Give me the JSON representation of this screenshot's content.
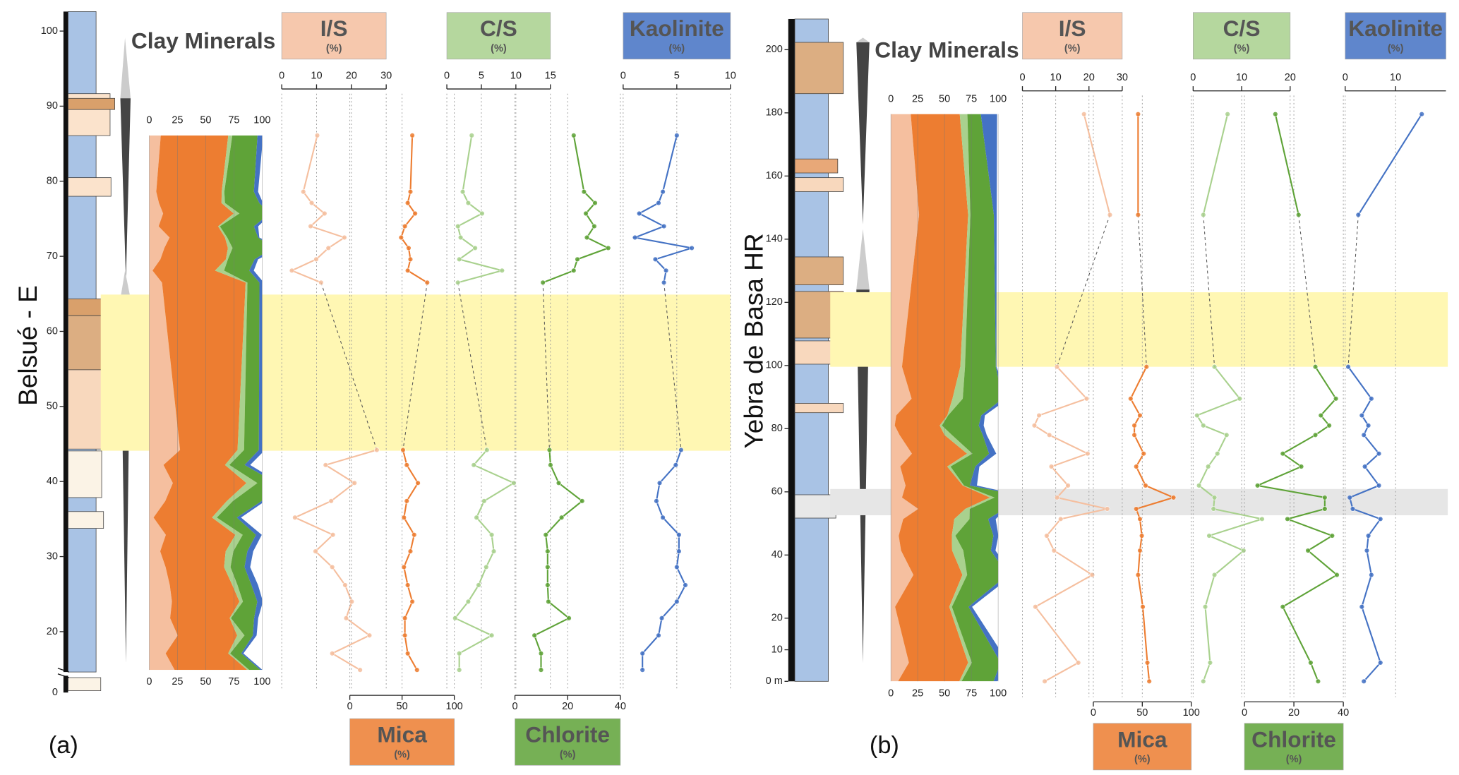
{
  "chart_data": [
    {
      "type": "clay-profile",
      "title": "Clay Minerals",
      "section": "Belsué - E",
      "panel_label": "(a)",
      "ylim": [
        14.5,
        102.6
      ],
      "yticks": [
        20,
        30,
        40,
        50,
        60,
        70,
        80,
        90,
        100
      ],
      "base_label": "0",
      "depths": [
        86.1,
        78.6,
        77.1,
        75.7,
        74.0,
        72.5,
        71.1,
        69.6,
        68.1,
        66.5,
        44.2,
        42.2,
        39.8,
        37.4,
        35.2,
        32.9,
        30.7,
        28.6,
        26.2,
        24.0,
        21.8,
        19.5,
        17.1,
        14.9
      ],
      "stack_lim": [
        0,
        100
      ],
      "stack_ticks": [
        0,
        25,
        50,
        75,
        100
      ],
      "highlights": [
        {
          "from": 44.1,
          "to": 64.9,
          "color": "#fff7b3"
        }
      ],
      "series": [
        {
          "name": "I/S",
          "unit": "(%)",
          "color": "#f5bf9f",
          "axis_position": "top",
          "xlim": [
            0,
            30
          ],
          "xticks": [
            0,
            10,
            20,
            30
          ],
          "values": [
            10.2,
            6.2,
            8.6,
            12.3,
            8.3,
            18.0,
            13.4,
            9.9,
            2.9,
            11.3,
            27.3,
            12.6,
            20.9,
            14.2,
            3.8,
            14.7,
            9.7,
            14.5,
            18.2,
            20.1,
            18.5,
            25.2,
            14.5,
            22.5
          ]
        },
        {
          "name": "Mica",
          "unit": "(%)",
          "color": "#ed7d31",
          "axis_position": "bottom",
          "xlim": [
            0,
            100
          ],
          "xticks": [
            0,
            50,
            100
          ],
          "values": [
            59.8,
            58.0,
            55.4,
            62.5,
            52.7,
            49.1,
            56.3,
            58.0,
            55.4,
            74.1,
            50.9,
            54.5,
            65.2,
            54.5,
            51.8,
            61.6,
            58.0,
            51.8,
            55.4,
            59.8,
            52.7,
            52.7,
            55.4,
            64.3
          ]
        },
        {
          "name": "C/S",
          "unit": "(%)",
          "color": "#a9d18e",
          "axis_position": "top",
          "xlim": [
            0,
            15
          ],
          "xticks": [
            0,
            5,
            10,
            15
          ],
          "values": [
            3.6,
            2.3,
            3.1,
            5.1,
            1.6,
            2.0,
            4.1,
            1.8,
            8.0,
            1.6,
            5.8,
            3.9,
            9.7,
            5.4,
            4.3,
            6.5,
            6.8,
            5.7,
            4.6,
            3.1,
            1.2,
            6.5,
            1.8,
            1.8
          ]
        },
        {
          "name": "Chlorite",
          "unit": "(%)",
          "color": "#5fa338",
          "axis_position": "bottom",
          "xlim": [
            0,
            40
          ],
          "xticks": [
            0,
            20,
            40
          ],
          "values": [
            22.3,
            26.2,
            30.4,
            26.9,
            30.1,
            27.3,
            35.4,
            23.7,
            22.3,
            10.6,
            13.1,
            13.5,
            16.6,
            25.5,
            17.7,
            11.7,
            12.4,
            12.4,
            12.4,
            12.7,
            20.5,
            7.4,
            9.9,
            9.9
          ]
        },
        {
          "name": "Kaolinite",
          "unit": "(%)",
          "color": "#4472c4",
          "axis_position": "top",
          "xlim": [
            0,
            10
          ],
          "xticks": [
            0,
            5,
            10
          ],
          "values": [
            5.0,
            3.7,
            3.3,
            1.5,
            3.8,
            1.1,
            6.4,
            3.0,
            4.0,
            3.8,
            5.4,
            4.9,
            3.4,
            3.1,
            3.7,
            5.2,
            5.2,
            5.0,
            5.8,
            5.0,
            3.6,
            3.3,
            1.8,
            1.8
          ]
        }
      ]
    },
    {
      "type": "clay-profile",
      "title": "Clay Minerals",
      "section": "Yebra de  Basa HR",
      "panel_label": "(b)",
      "ylim": [
        0,
        210
      ],
      "yticks": [
        {
          "value": 0,
          "label": "0 m"
        },
        10,
        20,
        40,
        60,
        80,
        100,
        120,
        140,
        160,
        180,
        200
      ],
      "depths": [
        179.6,
        147.7,
        99.6,
        89.5,
        84.2,
        81.0,
        78.0,
        72.1,
        68.0,
        62.0,
        58.2,
        54.6,
        51.4,
        46.1,
        41.4,
        33.7,
        23.6,
        5.9,
        0.0
      ],
      "stack_lim": [
        0,
        100
      ],
      "stack_ticks": [
        0,
        25,
        50,
        75,
        100
      ],
      "highlights": [
        {
          "from": 99.6,
          "to": 123.2,
          "color": "#fff7b3"
        },
        {
          "from": 52.6,
          "to": 60.9,
          "color": "#e6e6e6"
        }
      ],
      "series": [
        {
          "name": "I/S",
          "unit": "(%)",
          "color": "#f5bf9f",
          "axis_position": "top",
          "xlim": [
            0,
            30
          ],
          "xticks": [
            0,
            10,
            20,
            30
          ],
          "values": [
            18.5,
            26.3,
            10.4,
            19.3,
            5.0,
            3.6,
            8.1,
            19.6,
            8.7,
            13.7,
            10.4,
            25.5,
            11.5,
            7.3,
            9.5,
            21.0,
            3.9,
            16.8,
            6.7
          ]
        },
        {
          "name": "Mica",
          "unit": "(%)",
          "color": "#ed7d31",
          "axis_position": "bottom",
          "xlim": [
            0,
            100
          ],
          "xticks": [
            0,
            50,
            100
          ],
          "values": [
            45.7,
            45.7,
            54.3,
            38.1,
            47.6,
            41.9,
            41.9,
            51.4,
            43.8,
            53.3,
            81.9,
            43.8,
            47.6,
            49.5,
            47.6,
            45.7,
            50.5,
            55.2,
            57.1
          ]
        },
        {
          "name": "C/S",
          "unit": "(%)",
          "color": "#a9d18e",
          "axis_position": "top",
          "xlim": [
            0,
            20
          ],
          "xticks": [
            0,
            10,
            20
          ],
          "values": [
            7.1,
            2.1,
            4.4,
            9.6,
            0.8,
            2.1,
            6.9,
            5.0,
            3.1,
            1.2,
            4.4,
            4.2,
            14.2,
            3.3,
            10.4,
            4.4,
            2.5,
            3.5,
            2.1
          ]
        },
        {
          "name": "Chlorite",
          "unit": "(%)",
          "color": "#5fa338",
          "axis_position": "bottom",
          "xlim": [
            0,
            40
          ],
          "xticks": [
            0,
            20,
            40
          ],
          "values": [
            12.5,
            21.9,
            28.7,
            37.0,
            30.9,
            34.3,
            28.7,
            15.5,
            23.0,
            5.3,
            32.5,
            32.5,
            17.4,
            35.5,
            25.7,
            37.4,
            15.5,
            26.8,
            29.8
          ]
        },
        {
          "name": "Kaolinite",
          "unit": "(%)",
          "color": "#4472c4",
          "axis_position": "top",
          "xlim": [
            0,
            20
          ],
          "xticks": [
            0,
            10
          ],
          "values": [
            15.2,
            2.6,
            0.6,
            5.2,
            3.3,
            4.6,
            3.7,
            6.7,
            3.9,
            6.7,
            0.9,
            1.5,
            7.0,
            4.6,
            4.3,
            5.2,
            3.3,
            7.0,
            3.7
          ]
        }
      ]
    }
  ]
}
